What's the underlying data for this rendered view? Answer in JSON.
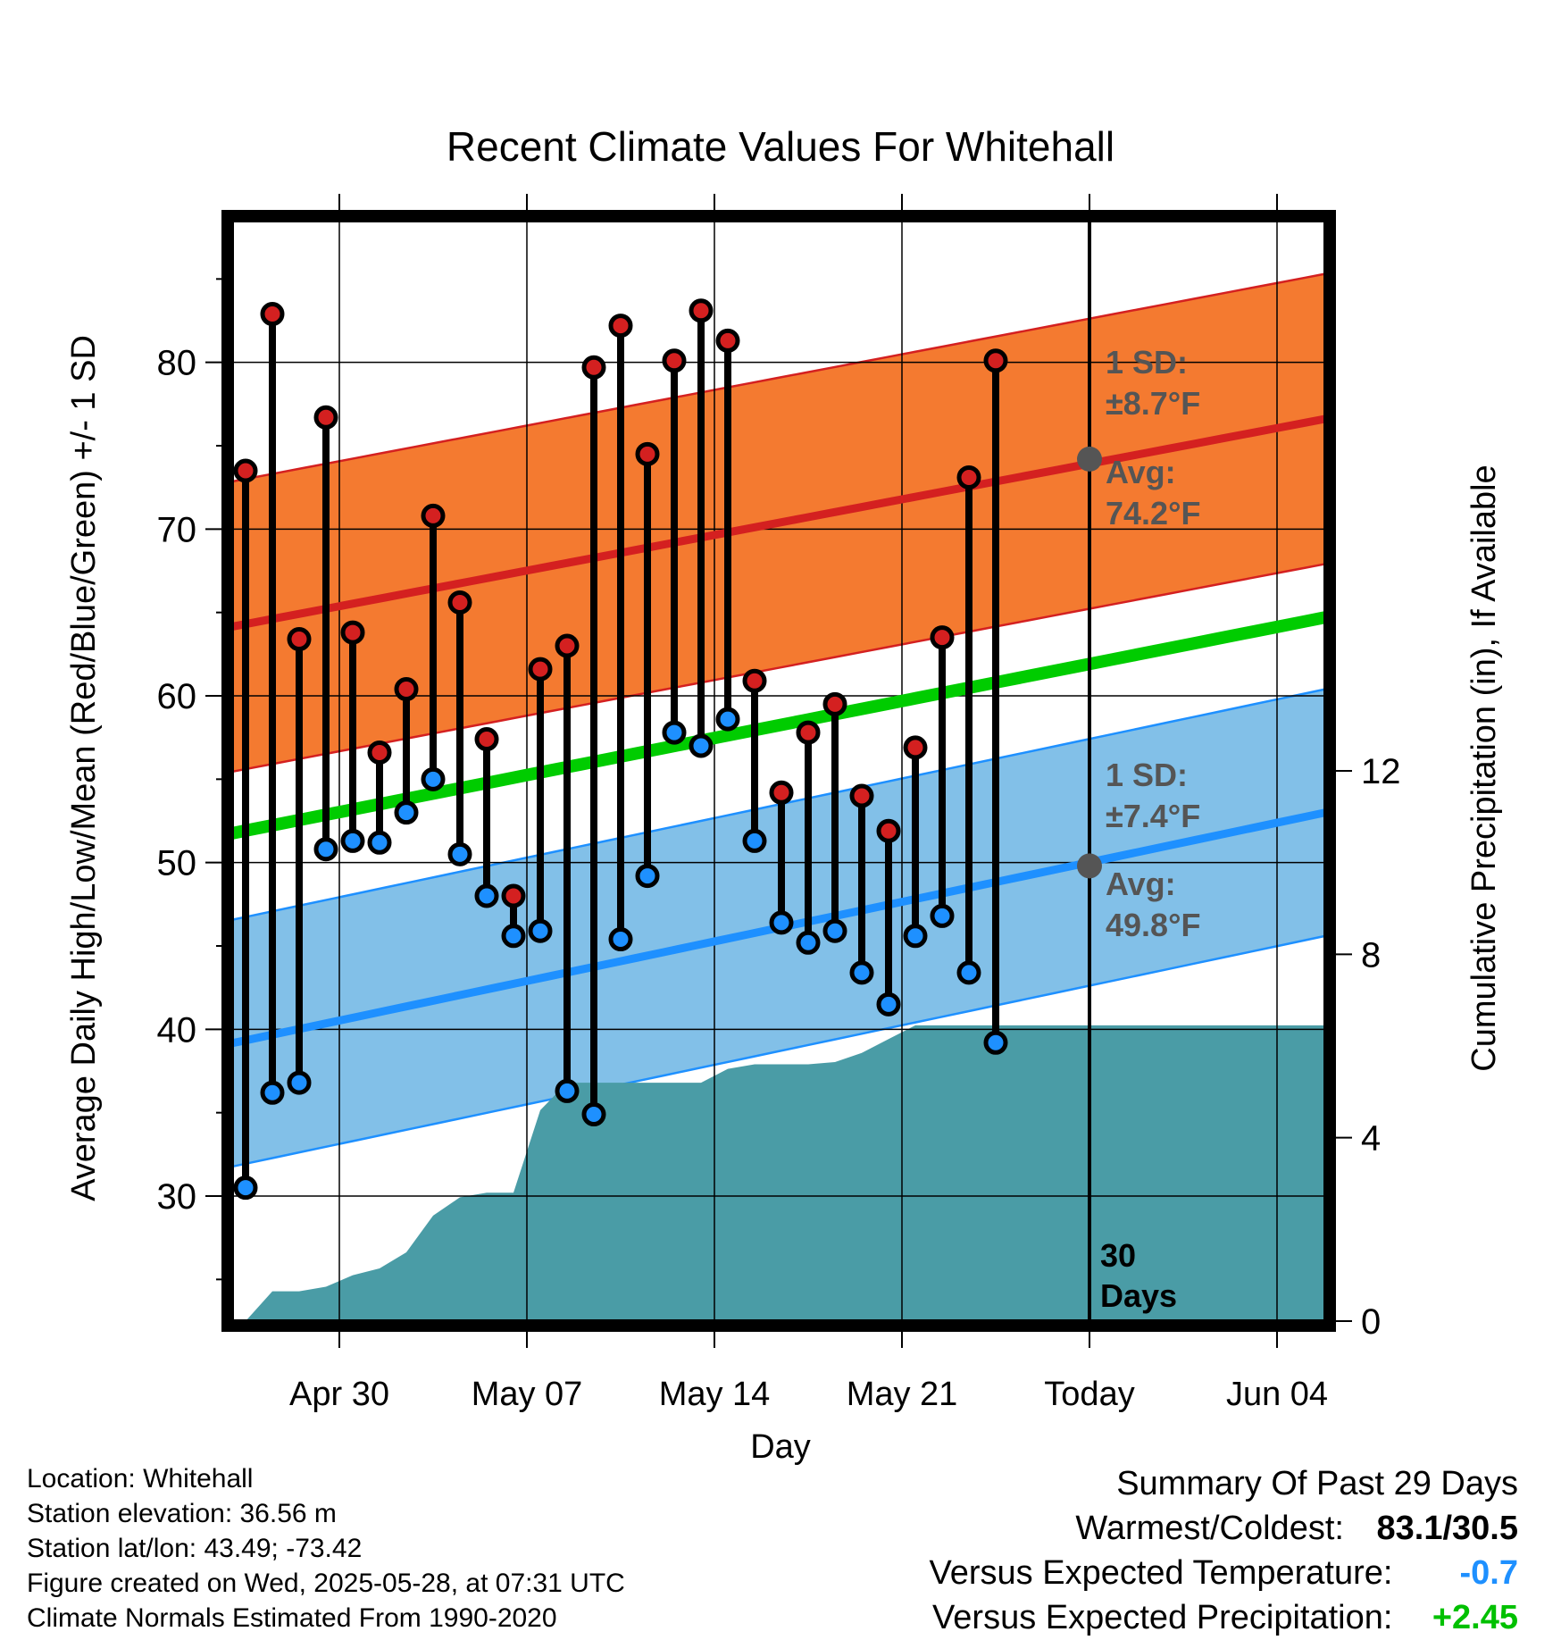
{
  "chart_data": {
    "type": "line",
    "title": "Recent Climate Values For Whitehall",
    "xlabel": "Day",
    "ylabel_left": "Average Daily High/Low/Mean (Red/Blue/Green) +/- 1 SD",
    "ylabel_right": "Cumulative Precipitation (in), If Available",
    "x_ticks": [
      "Apr 30",
      "May 07",
      "May 14",
      "May 21",
      "Today",
      "Jun 04"
    ],
    "y_ticks_left": [
      "30",
      "40",
      "50",
      "60",
      "70",
      "80"
    ],
    "y_ticks_right": [
      "0",
      "4",
      "8",
      "12"
    ],
    "ylim_left": [
      22.5,
      88.5
    ],
    "ylim_right": [
      0,
      24
    ],
    "grid": true,
    "highs": [
      73.5,
      82.9,
      63.4,
      76.7,
      63.8,
      56.6,
      60.4,
      70.8,
      65.6,
      57.4,
      48.0,
      61.6,
      63.0,
      79.7,
      82.2,
      74.5,
      80.1,
      83.1,
      81.3,
      60.9,
      54.2,
      57.8,
      59.5,
      54.0,
      51.9,
      56.9,
      63.5,
      73.1,
      80.1
    ],
    "lows": [
      30.5,
      36.2,
      36.8,
      50.8,
      51.3,
      51.2,
      53.0,
      55.0,
      50.5,
      48.0,
      45.6,
      45.9,
      36.3,
      34.9,
      45.4,
      49.2,
      57.8,
      57.0,
      58.6,
      51.3,
      46.4,
      45.2,
      45.9,
      43.4,
      41.5,
      45.6,
      46.8,
      43.4,
      39.2
    ],
    "normal_high": {
      "start": 64.0,
      "today": 74.2,
      "end": 76.7
    },
    "normal_high_sd": 8.7,
    "normal_low": {
      "start": 39.0,
      "today": 49.8,
      "end": 53.1
    },
    "normal_low_sd": 7.4,
    "normal_mean": {
      "start": 51.6,
      "end": 64.8
    },
    "precipitation_cumulative": [
      0.0,
      0.65,
      0.65,
      0.75,
      1.0,
      1.15,
      1.5,
      2.3,
      2.7,
      2.8,
      2.8,
      4.6,
      5.2,
      5.2,
      5.2,
      5.2,
      5.2,
      5.2,
      5.5,
      5.6,
      5.6,
      5.6,
      5.65,
      5.85,
      6.15,
      6.45,
      6.45,
      6.45,
      6.45,
      6.45,
      6.45
    ],
    "annotations": {
      "high_sd_label": "1 SD:",
      "high_sd_value": "±8.7°F",
      "high_avg_label": "Avg:",
      "high_avg_value": "74.2°F",
      "low_sd_label": "1 SD:",
      "low_sd_value": "±7.4°F",
      "low_avg_label": "Avg:",
      "low_avg_value": "49.8°F",
      "days_value": "30",
      "days_label": "Days"
    },
    "colors": {
      "high_band": "#f47a30",
      "high_line": "#d42020",
      "low_band": "#82c0e8",
      "low_line": "#1e90ff",
      "mean_line": "#00cc00",
      "precip": "#4a9ca6",
      "high_marker": "#d42020",
      "low_marker": "#1e90ff"
    }
  },
  "info": {
    "location": "Location: Whitehall",
    "elevation": "Station elevation: 36.56 m",
    "latlon": "Station lat/lon: 43.49; -73.42",
    "created": "Figure created on Wed, 2025-05-28, at 07:31 UTC",
    "normals": "Climate Normals Estimated From 1990-2020"
  },
  "summary": {
    "title": "Summary Of Past 29 Days",
    "warm_cold_label": "Warmest/Coldest:",
    "warm_cold_value": "83.1/30.5",
    "temp_label": "Versus Expected Temperature:",
    "temp_value": "-0.7",
    "precip_label": "Versus Expected Precipitation:",
    "precip_value": "+2.45"
  }
}
